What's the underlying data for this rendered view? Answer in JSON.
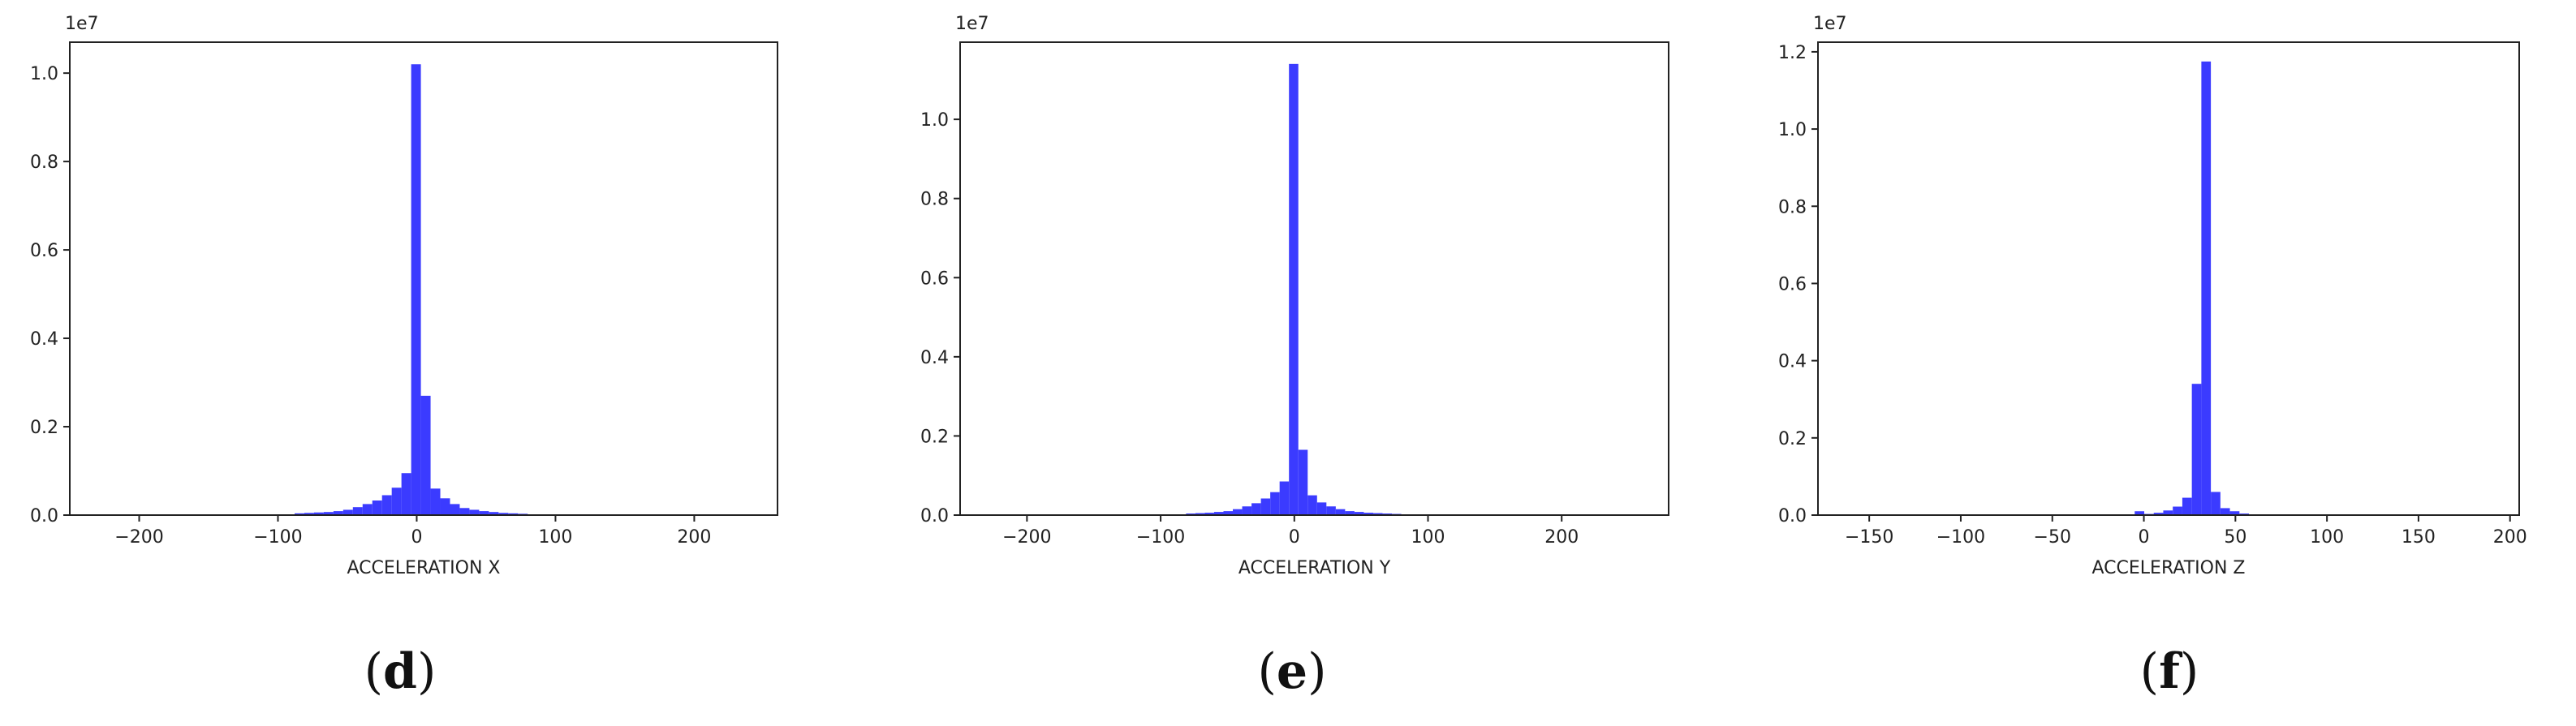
{
  "chart_data": [
    {
      "type": "bar",
      "panel": "d",
      "xlabel": "ACCELERATION X",
      "ylabel": "",
      "y_multiplier": "1e7",
      "xlim": [
        -250,
        260
      ],
      "ylim": [
        0,
        10.7
      ],
      "xticks": [
        -200,
        -100,
        0,
        100,
        200
      ],
      "xtick_labels": [
        "−200",
        "−100",
        "0",
        "100",
        "200"
      ],
      "yticks": [
        0,
        2,
        4,
        6,
        8,
        10
      ],
      "ytick_labels": [
        "0.0",
        "0.2",
        "0.4",
        "0.6",
        "0.8",
        "1.0"
      ],
      "bin_width": 7,
      "bins": [
        {
          "x0": -88,
          "value": 0.04
        },
        {
          "x0": -81,
          "value": 0.05
        },
        {
          "x0": -74,
          "value": 0.06
        },
        {
          "x0": -67,
          "value": 0.07
        },
        {
          "x0": -60,
          "value": 0.09
        },
        {
          "x0": -53,
          "value": 0.12
        },
        {
          "x0": -46,
          "value": 0.18
        },
        {
          "x0": -39,
          "value": 0.25
        },
        {
          "x0": -32,
          "value": 0.33
        },
        {
          "x0": -25,
          "value": 0.45
        },
        {
          "x0": -18,
          "value": 0.62
        },
        {
          "x0": -11,
          "value": 0.95
        },
        {
          "x0": -4,
          "value": 10.2
        },
        {
          "x0": 3,
          "value": 2.7
        },
        {
          "x0": 10,
          "value": 0.6
        },
        {
          "x0": 17,
          "value": 0.38
        },
        {
          "x0": 24,
          "value": 0.25
        },
        {
          "x0": 31,
          "value": 0.16
        },
        {
          "x0": 38,
          "value": 0.12
        },
        {
          "x0": 45,
          "value": 0.09
        },
        {
          "x0": 52,
          "value": 0.07
        },
        {
          "x0": 59,
          "value": 0.05
        },
        {
          "x0": 66,
          "value": 0.04
        },
        {
          "x0": 73,
          "value": 0.03
        }
      ]
    },
    {
      "type": "bar",
      "panel": "e",
      "xlabel": "ACCELERATION Y",
      "ylabel": "",
      "y_multiplier": "1e7",
      "xlim": [
        -250,
        280
      ],
      "ylim": [
        0,
        11.95
      ],
      "xticks": [
        -200,
        -100,
        0,
        100,
        200
      ],
      "xtick_labels": [
        "−200",
        "−100",
        "0",
        "100",
        "200"
      ],
      "yticks": [
        0,
        2,
        4,
        6,
        8,
        10
      ],
      "ytick_labels": [
        "0.0",
        "0.2",
        "0.4",
        "0.6",
        "0.8",
        "1.0"
      ],
      "bin_width": 7,
      "bins": [
        {
          "x0": -81,
          "value": 0.04
        },
        {
          "x0": -74,
          "value": 0.05
        },
        {
          "x0": -67,
          "value": 0.06
        },
        {
          "x0": -60,
          "value": 0.08
        },
        {
          "x0": -53,
          "value": 0.1
        },
        {
          "x0": -46,
          "value": 0.15
        },
        {
          "x0": -39,
          "value": 0.22
        },
        {
          "x0": -32,
          "value": 0.3
        },
        {
          "x0": -25,
          "value": 0.42
        },
        {
          "x0": -18,
          "value": 0.58
        },
        {
          "x0": -11,
          "value": 0.85
        },
        {
          "x0": -4,
          "value": 11.4
        },
        {
          "x0": 3,
          "value": 1.65
        },
        {
          "x0": 10,
          "value": 0.5
        },
        {
          "x0": 17,
          "value": 0.32
        },
        {
          "x0": 24,
          "value": 0.22
        },
        {
          "x0": 31,
          "value": 0.15
        },
        {
          "x0": 38,
          "value": 0.1
        },
        {
          "x0": 45,
          "value": 0.08
        },
        {
          "x0": 52,
          "value": 0.06
        },
        {
          "x0": 59,
          "value": 0.05
        },
        {
          "x0": 66,
          "value": 0.04
        },
        {
          "x0": 73,
          "value": 0.03
        }
      ]
    },
    {
      "type": "bar",
      "panel": "f",
      "xlabel": "ACCELERATION Z",
      "ylabel": "",
      "y_multiplier": "1e7",
      "xlim": [
        -178,
        205
      ],
      "ylim": [
        0,
        12.25
      ],
      "xticks": [
        -150,
        -100,
        -50,
        0,
        50,
        100,
        150,
        200
      ],
      "xtick_labels": [
        "−150",
        "−100",
        "−50",
        "0",
        "50",
        "100",
        "150",
        "200"
      ],
      "yticks": [
        0,
        2,
        4,
        6,
        8,
        10,
        12
      ],
      "ytick_labels": [
        "0.0",
        "0.2",
        "0.4",
        "0.6",
        "0.8",
        "1.0",
        "1.2"
      ],
      "bin_width": 5.2,
      "bins": [
        {
          "x0": -5,
          "value": 0.1
        },
        {
          "x0": 0.2,
          "value": 0.03
        },
        {
          "x0": 5.4,
          "value": 0.06
        },
        {
          "x0": 10.6,
          "value": 0.12
        },
        {
          "x0": 15.8,
          "value": 0.22
        },
        {
          "x0": 21,
          "value": 0.45
        },
        {
          "x0": 26.2,
          "value": 3.4
        },
        {
          "x0": 31.4,
          "value": 11.75
        },
        {
          "x0": 36.6,
          "value": 0.6
        },
        {
          "x0": 41.8,
          "value": 0.18
        },
        {
          "x0": 47,
          "value": 0.1
        },
        {
          "x0": 52.2,
          "value": 0.04
        }
      ]
    }
  ],
  "captions": [
    "d",
    "e",
    "f"
  ],
  "bar_color": "#3b3bff"
}
